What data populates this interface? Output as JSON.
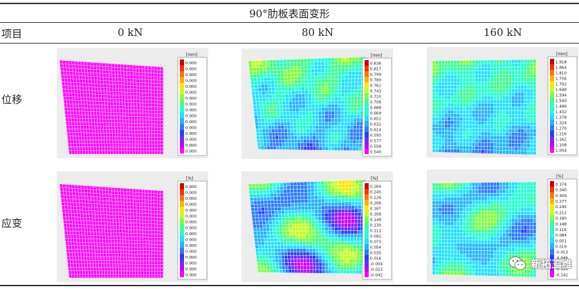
{
  "table": {
    "title": "90°肋板表面变形",
    "headers": [
      "项目",
      "0 kN",
      "80 kN",
      "160 kN"
    ],
    "rows": [
      {
        "label": "位移",
        "panels": [
          {
            "unit": "[mm]",
            "ticks": [
              "0.000",
              "0.000",
              "0.000",
              "0.000",
              "0.000",
              "0.000",
              "0.000",
              "0.000",
              "0.000",
              "0.000",
              "0.000",
              "0.000",
              "0.000",
              "0.000",
              "0.000",
              "0.000"
            ],
            "field": "uniform"
          },
          {
            "unit": "[mm]",
            "ticks": [
              "0.836",
              "0.817",
              "0.799",
              "0.780",
              "0.762",
              "0.743",
              "0.725",
              "0.706",
              "0.688",
              "0.669",
              "0.651",
              "0.632",
              "0.614",
              "0.595",
              "0.577",
              "0.558",
              "0.540"
            ],
            "field": "displacement80"
          },
          {
            "unit": "[mm]",
            "ticks": [
              "1.918",
              "1.864",
              "1.810",
              "1.756",
              "1.702",
              "1.648",
              "1.594",
              "1.540",
              "1.486",
              "1.432",
              "1.378",
              "1.324",
              "1.270",
              "1.216",
              "1.162",
              "1.108",
              "1.054"
            ],
            "field": "displacement160"
          }
        ]
      },
      {
        "label": "应变",
        "panels": [
          {
            "unit": "[%]",
            "ticks": [
              "0.000",
              "0.000",
              "0.000",
              "0.000",
              "0.000",
              "0.000",
              "0.000",
              "0.000",
              "0.000",
              "0.000",
              "0.000",
              "0.000",
              "0.000",
              "0.000",
              "0.000",
              "0.000"
            ],
            "field": "uniform"
          },
          {
            "unit": "[%]",
            "ticks": [
              "0.264",
              "0.245",
              "0.226",
              "0.206",
              "0.187",
              "0.168",
              "0.149",
              "0.130",
              "0.111",
              "0.092",
              "0.073",
              "0.054",
              "0.035",
              "0.016",
              "-0.004",
              "-0.023",
              "-0.042"
            ],
            "field": "strain80"
          },
          {
            "unit": "[%]",
            "ticks": [
              "0.374",
              "0.340",
              "0.309",
              "0.277",
              "0.245",
              "0.212",
              "0.180",
              "0.148",
              "0.116",
              "0.084",
              "0.051",
              "0.019",
              "-0.013",
              "-0.046",
              "-0.078",
              "-0.110",
              "-0.142"
            ],
            "field": "strain160"
          }
        ]
      }
    ]
  },
  "watermark": {
    "text": "新拓三维",
    "icon": "wechat-icon"
  },
  "colors": {
    "uniform": "#ff00ff",
    "mesh": "#ffffff",
    "panel_bg": "#ececec"
  }
}
